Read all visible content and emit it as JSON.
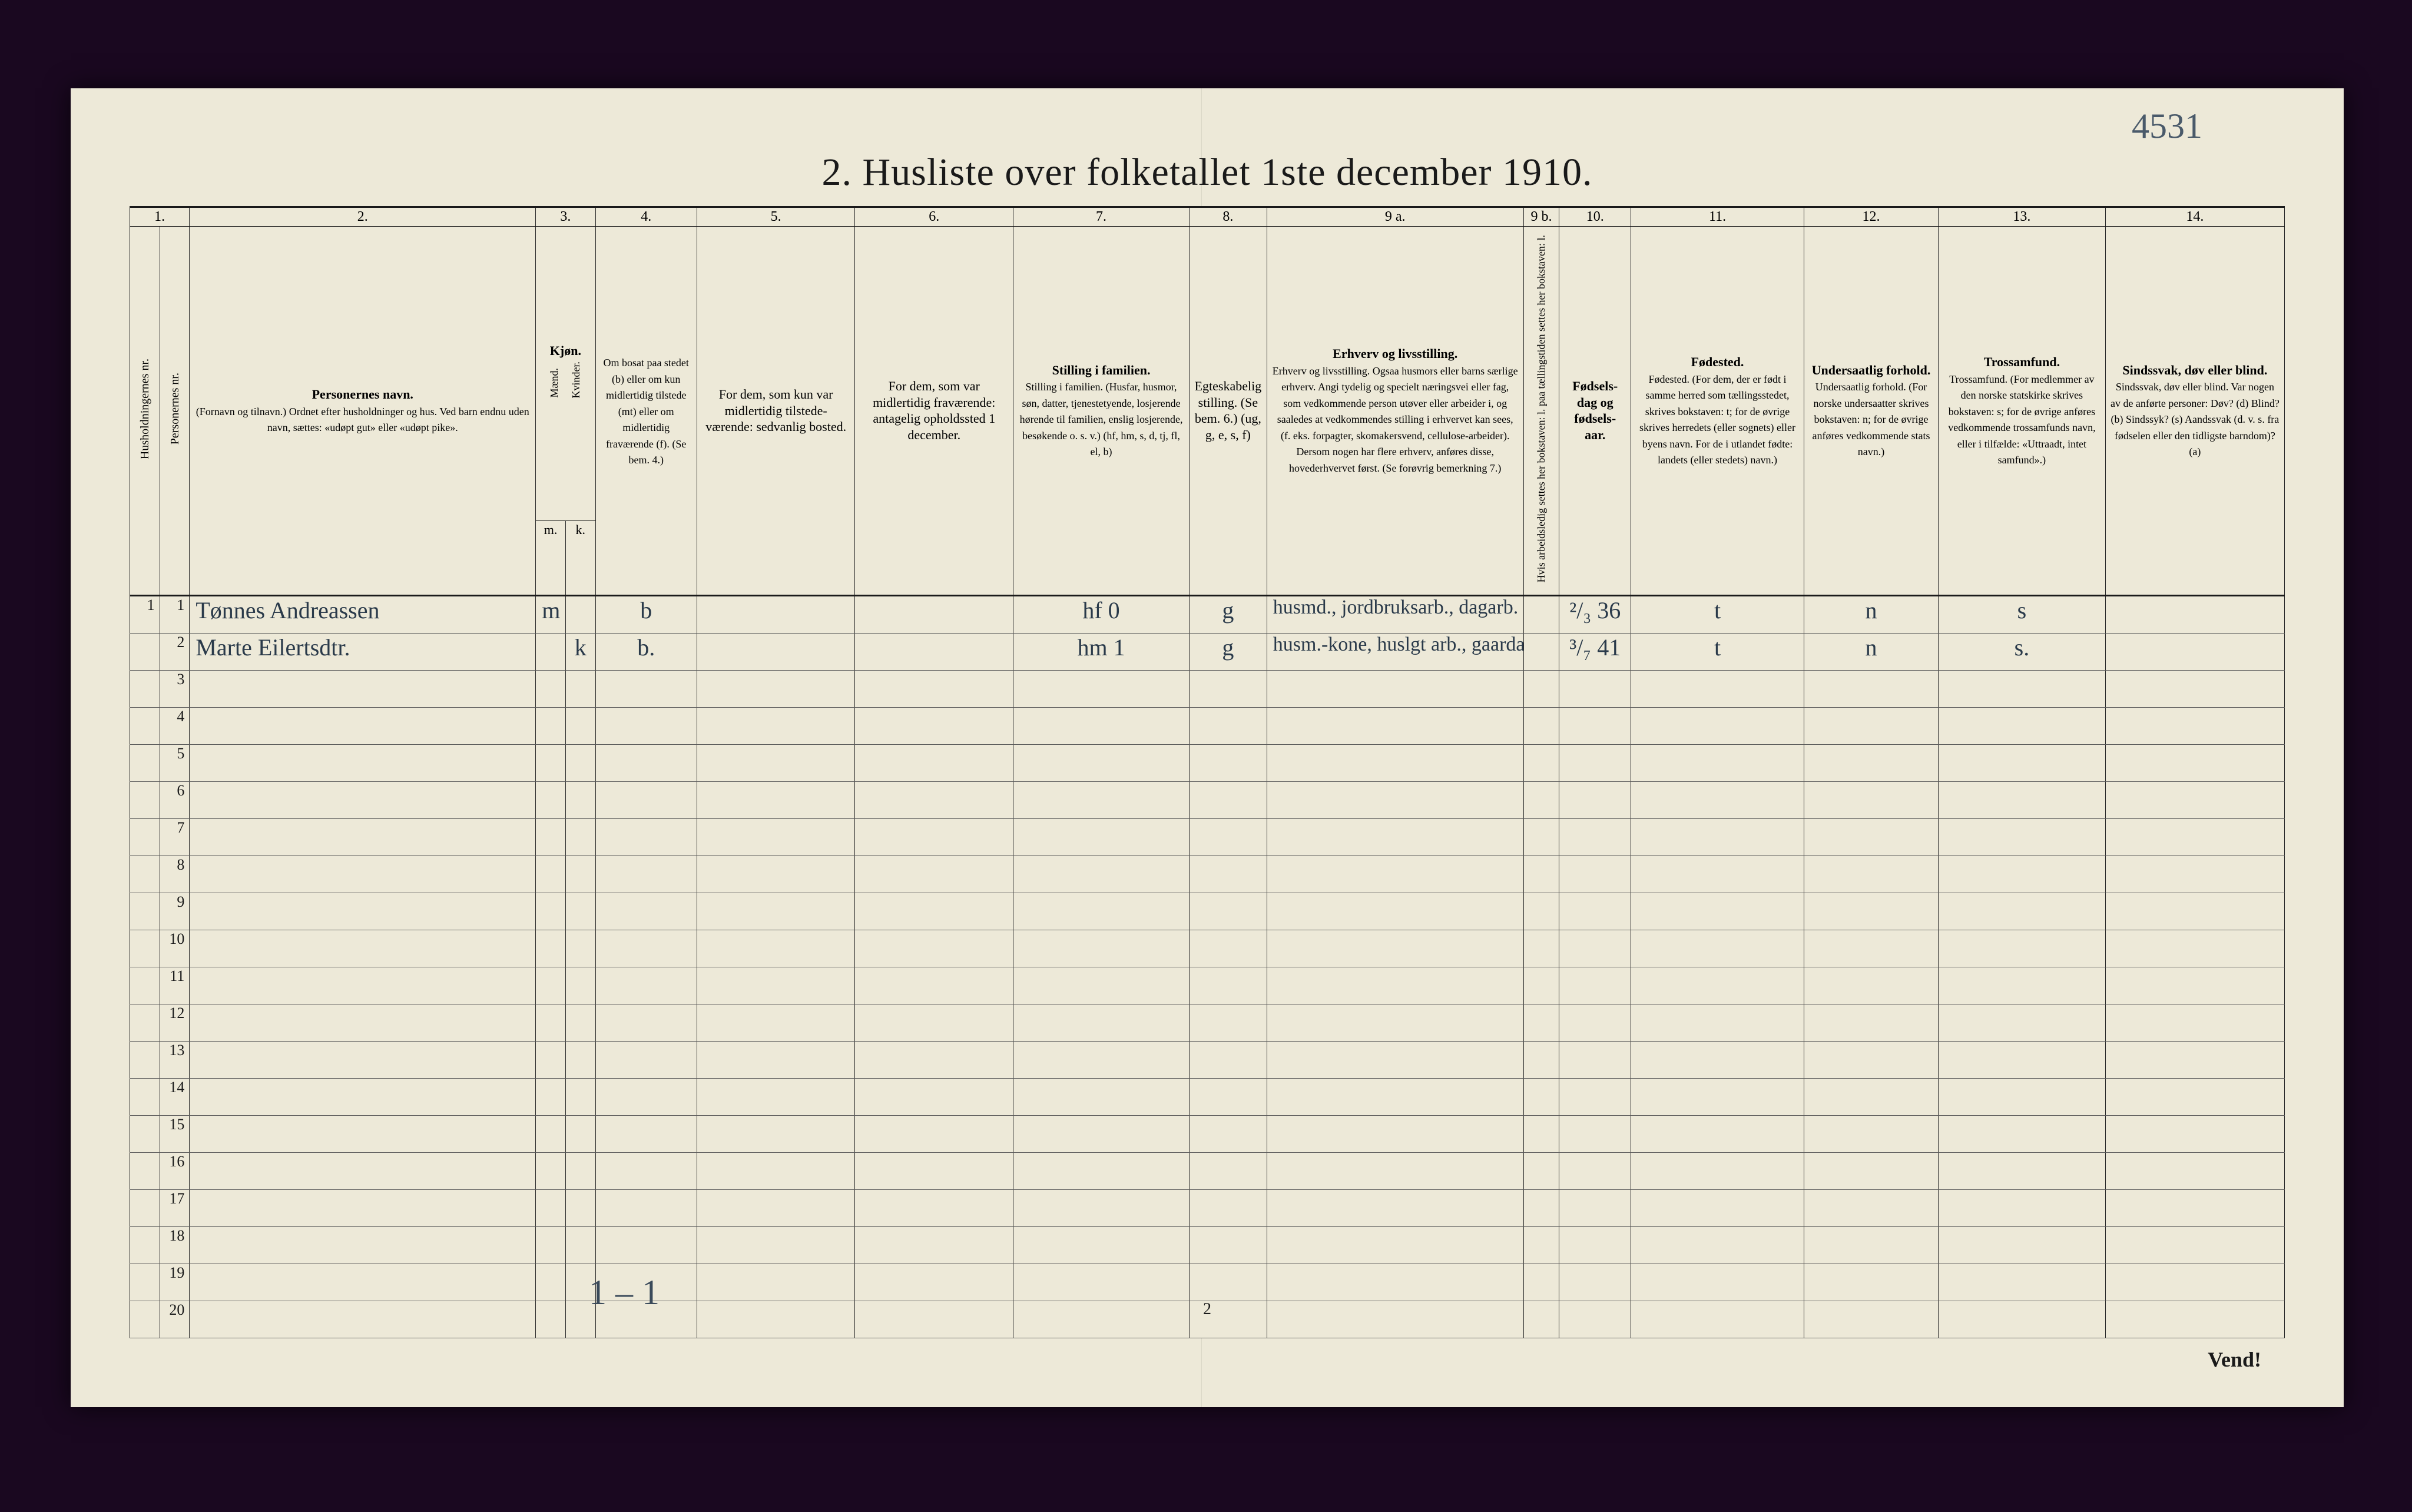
{
  "page": {
    "handwritten_top_right": "4531",
    "title": "2.  Husliste over folketallet 1ste december 1910.",
    "footer_tally": "1 – 1",
    "page_number": "2",
    "vend": "Vend!",
    "background_color": "#ede9d8",
    "ink_color": "#1a1a1a",
    "handwriting_color": "#3a4a5a"
  },
  "columns": {
    "nums": [
      "1.",
      "2.",
      "3.",
      "4.",
      "5.",
      "6.",
      "7.",
      "8.",
      "9 a.",
      "9 b.",
      "10.",
      "11.",
      "12.",
      "13.",
      "14."
    ],
    "c1": "Husholdningernes nr.",
    "c2": "Personernes nr.",
    "c3_head": "Personernes navn.",
    "c3_sub": "(Fornavn og tilnavn.)\nOrdnet efter husholdninger og hus.\nVed barn endnu uden navn, sættes: «udøpt gut» eller «udøpt pike».",
    "c3_kjon": "Kjøn.",
    "c3_m": "Mænd.",
    "c3_k": "Kvinder.",
    "c3_mk_m": "m.",
    "c3_mk_k": "k.",
    "c4": "Om bosat\npaa stedet (b) eller om kun midlertidig tilstede (mt) eller om midlertidig fraværende (f).\n(Se bem. 4.)",
    "c5": "For dem, som kun var\nmidlertidig tilstede-\nværende:\nsedvanlig bosted.",
    "c6": "For dem, som var\nmidlertidig\nfraværende:\nantagelig opholdssted 1 december.",
    "c7": "Stilling i familien.\n(Husfar, husmor, søn, datter, tjenestetyende, losjerende hørende til familien, enslig losjerende, besøkende o. s. v.)\n(hf, hm, s, d, tj, fl, el, b)",
    "c8": "Egteskabelig\nstilling.\n(Se bem. 6.)\n(ug, g, e, s, f)",
    "c9": "Erhverv og livsstilling.\nOgsaa husmors eller barns særlige erhverv.\nAngi tydelig og specielt næringsvei eller fag, som vedkommende person utøver eller arbeider i, og saaledes at vedkommendes stilling i erhvervet kan sees, (f. eks. forpagter, skomakersvend, cellulose-arbeider). Dersom nogen har flere erhverv, anføres disse, hovederhvervet først.\n(Se forøvrig bemerkning 7.)",
    "c9b": "Hvis arbeidsledig settes her bokstaven: l.\npaa tællingstiden settes her bokstaven: l.",
    "c10": "Fødsels-\ndag\nog\nfødsels-\naar.",
    "c11": "Fødested.\n(For dem, der er født i samme herred som tællingsstedet, skrives bokstaven: t; for de øvrige skrives herredets (eller sognets) eller byens navn.\nFor de i utlandet fødte: landets (eller stedets) navn.)",
    "c12": "Undersaatlig\nforhold.\n(For norske undersaatter skrives bokstaven: n; for de øvrige anføres vedkommende stats navn.)",
    "c13": "Trossamfund.\n(For medlemmer av den norske statskirke skrives bokstaven: s; for de øvrige anføres vedkommende trossamfunds navn, eller i tilfælde: «Uttraadt, intet samfund».)",
    "c14": "Sindssvak, døv\neller blind.\nVar nogen av de anførte personer:\nDøv?        (d)\nBlind?      (b)\nSindssyk?  (s)\nAandssvak (d. v. s. fra fødselen eller den tidligste barndom)? (a)"
  },
  "rows": [
    {
      "hh": "1",
      "pn": "1",
      "name": "Tønnes Andreassen",
      "m": "m",
      "k": "",
      "bosat": "b",
      "c5": "",
      "c6": "",
      "c7a": "hf",
      "c7b": "0",
      "c8": "g",
      "c9": "husmd., jordbruksarb., dagarb.",
      "c9b": "",
      "c10": "²/₃ 36",
      "c11": "t",
      "c12": "n",
      "c13": "s",
      "c14": ""
    },
    {
      "hh": "",
      "pn": "2",
      "name": "Marte Eilertsdtr.",
      "m": "",
      "k": "k",
      "bosat": "b.",
      "c5": "",
      "c6": "",
      "c7a": "hm",
      "c7b": "1",
      "c8": "g",
      "c9": "husm.-kone, huslgt arb., gaardarb.",
      "c9b": "",
      "c10": "³/₇ 41",
      "c11": "t",
      "c12": "n",
      "c13": "s.",
      "c14": ""
    }
  ],
  "blank_row_count": 18
}
